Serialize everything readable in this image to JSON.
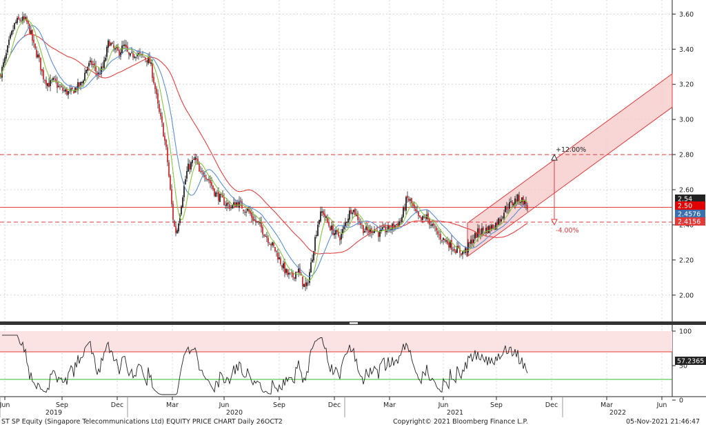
{
  "chart_data": [
    {
      "type": "candlestick",
      "ylim": [
        1.85,
        3.68
      ],
      "y_ticks": [
        "3.60",
        "3.40",
        "3.20",
        "3.00",
        "2.80",
        "2.60",
        "2.40",
        "2.20",
        "2.00"
      ],
      "x_ticks": [
        "Jun",
        "Sep",
        "Dec",
        "Mar",
        "Jun",
        "Sep",
        "Dec",
        "Mar",
        "Jun",
        "Sep",
        "Dec",
        "Mar",
        "Jun"
      ],
      "year_labels": [
        "2019",
        "2020",
        "2021",
        "2022"
      ],
      "price_path": [
        [
          0,
          3.25
        ],
        [
          8,
          3.35
        ],
        [
          14,
          3.45
        ],
        [
          22,
          3.55
        ],
        [
          30,
          3.57
        ],
        [
          38,
          3.56
        ],
        [
          44,
          3.5
        ],
        [
          50,
          3.4
        ],
        [
          56,
          3.35
        ],
        [
          62,
          3.25
        ],
        [
          70,
          3.2
        ],
        [
          78,
          3.22
        ],
        [
          86,
          3.18
        ],
        [
          94,
          3.16
        ],
        [
          102,
          3.15
        ],
        [
          110,
          3.18
        ],
        [
          118,
          3.2
        ],
        [
          126,
          3.3
        ],
        [
          134,
          3.32
        ],
        [
          142,
          3.25
        ],
        [
          150,
          3.3
        ],
        [
          158,
          3.45
        ],
        [
          164,
          3.4
        ],
        [
          172,
          3.38
        ],
        [
          180,
          3.42
        ],
        [
          188,
          3.35
        ],
        [
          196,
          3.38
        ],
        [
          204,
          3.36
        ],
        [
          212,
          3.35
        ],
        [
          218,
          3.32
        ],
        [
          224,
          3.2
        ],
        [
          230,
          3.05
        ],
        [
          236,
          2.95
        ],
        [
          242,
          2.8
        ],
        [
          248,
          2.55
        ],
        [
          252,
          2.4
        ],
        [
          256,
          2.35
        ],
        [
          260,
          2.45
        ],
        [
          266,
          2.6
        ],
        [
          272,
          2.72
        ],
        [
          278,
          2.75
        ],
        [
          284,
          2.78
        ],
        [
          290,
          2.68
        ],
        [
          296,
          2.7
        ],
        [
          304,
          2.65
        ],
        [
          312,
          2.58
        ],
        [
          320,
          2.55
        ],
        [
          328,
          2.52
        ],
        [
          336,
          2.5
        ],
        [
          344,
          2.53
        ],
        [
          352,
          2.5
        ],
        [
          360,
          2.48
        ],
        [
          368,
          2.43
        ],
        [
          376,
          2.4
        ],
        [
          384,
          2.35
        ],
        [
          392,
          2.3
        ],
        [
          400,
          2.25
        ],
        [
          408,
          2.18
        ],
        [
          416,
          2.12
        ],
        [
          424,
          2.1
        ],
        [
          432,
          2.15
        ],
        [
          438,
          2.08
        ],
        [
          444,
          2.03
        ],
        [
          450,
          2.15
        ],
        [
          456,
          2.3
        ],
        [
          462,
          2.43
        ],
        [
          468,
          2.48
        ],
        [
          474,
          2.42
        ],
        [
          480,
          2.38
        ],
        [
          486,
          2.35
        ],
        [
          494,
          2.33
        ],
        [
          502,
          2.42
        ],
        [
          510,
          2.5
        ],
        [
          518,
          2.45
        ],
        [
          526,
          2.38
        ],
        [
          534,
          2.36
        ],
        [
          542,
          2.38
        ],
        [
          550,
          2.35
        ],
        [
          558,
          2.37
        ],
        [
          566,
          2.38
        ],
        [
          574,
          2.4
        ],
        [
          582,
          2.43
        ],
        [
          590,
          2.55
        ],
        [
          596,
          2.53
        ],
        [
          602,
          2.47
        ],
        [
          610,
          2.42
        ],
        [
          618,
          2.45
        ],
        [
          626,
          2.4
        ],
        [
          634,
          2.35
        ],
        [
          642,
          2.32
        ],
        [
          650,
          2.3
        ],
        [
          658,
          2.27
        ],
        [
          666,
          2.25
        ],
        [
          672,
          2.24
        ],
        [
          678,
          2.27
        ],
        [
          686,
          2.32
        ],
        [
          694,
          2.36
        ],
        [
          702,
          2.37
        ],
        [
          710,
          2.38
        ],
        [
          718,
          2.4
        ],
        [
          726,
          2.44
        ],
        [
          734,
          2.5
        ],
        [
          742,
          2.52
        ],
        [
          750,
          2.55
        ],
        [
          758,
          2.54
        ],
        [
          765,
          2.5
        ]
      ],
      "reference_lines": {
        "upper_target": 2.8,
        "current": 2.5,
        "lower_target": 2.4156
      },
      "channel": {
        "lower_start": [
          678,
          2.22
        ],
        "lower_end": [
          975,
          3.07
        ],
        "upper_offset": 0.19
      },
      "measurement": {
        "x_day": 804,
        "from": 2.5,
        "top": 2.8,
        "bottom": 2.4,
        "up_label": "+12.00%",
        "down_label": "-4.00%"
      },
      "value_tags": [
        {
          "label": "2.54",
          "value": 2.54,
          "color": "#222222"
        },
        {
          "label": "2.50",
          "value": 2.5,
          "color": "#e00000"
        },
        {
          "label": "2.4576",
          "value": 2.4576,
          "color": "#3a6fb0"
        },
        {
          "label": "2.4156",
          "value": 2.4156,
          "color": "#e03a3a"
        }
      ],
      "ma_colors": {
        "short": "#86c440",
        "medium": "#5b8ed1",
        "long": "#e04040"
      }
    },
    {
      "type": "line",
      "indicator": "RSI",
      "ylim": [
        0,
        100
      ],
      "y_ticks": [
        "100",
        "50",
        "0"
      ],
      "upper_band": 70,
      "lower_band": 30,
      "current_value": "57.2365",
      "colors": {
        "line": "#222222",
        "upper": "#e03a3a",
        "lower": "#2fbf2f"
      }
    }
  ],
  "footer": {
    "left": "ST SP Equity (Singapore Telecommunications Ltd) EQUITY PRICE CHART  Daily 26OCT2",
    "center": "Copyright© 2021 Bloomberg Finance L.P.",
    "right": "05-Nov-2021 21:46:47"
  }
}
